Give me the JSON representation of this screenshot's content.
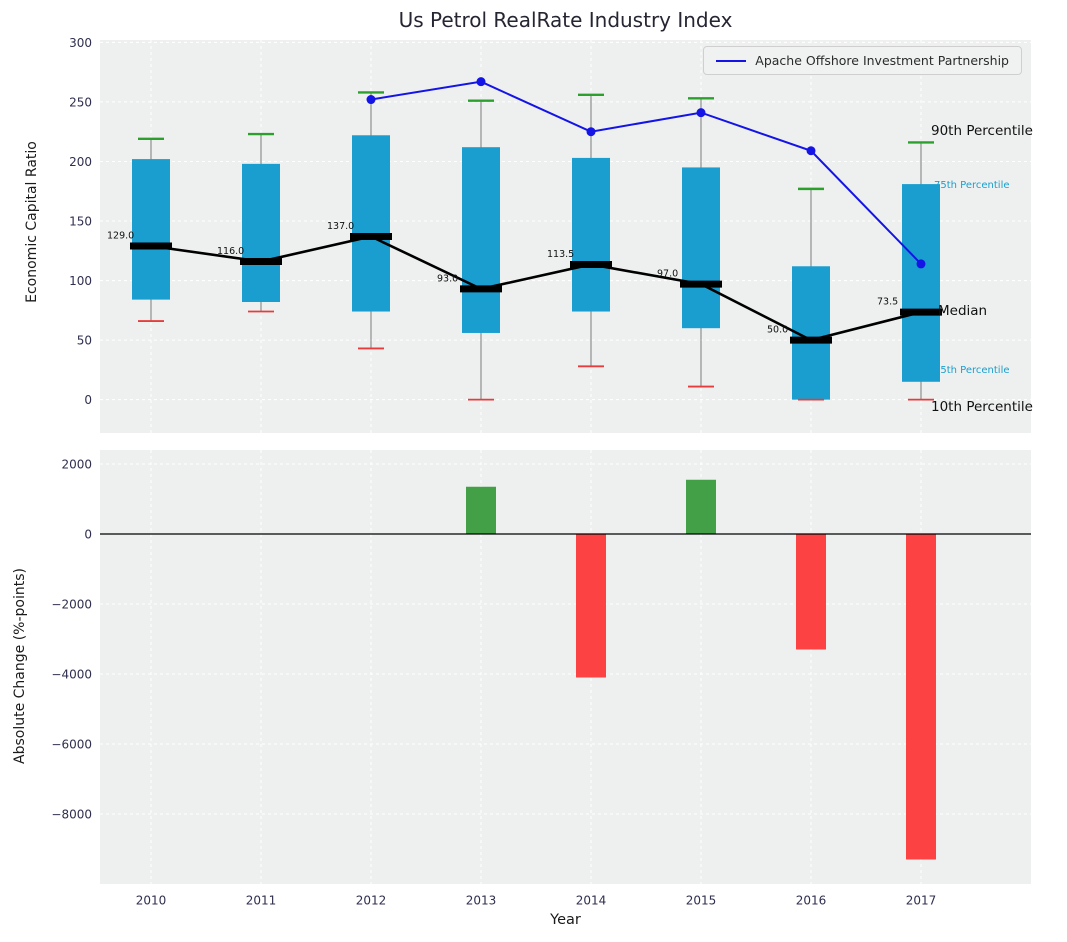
{
  "title": "Us Petrol RealRate Industry Index",
  "legend": {
    "series_label": "Apache Offshore Investment Partnership"
  },
  "axes": {
    "top_ylabel": "Economic Capital Ratio",
    "bottom_ylabel": "Absolute Change (%-points)",
    "xlabel": "Year",
    "top_yticks": [
      300,
      250,
      200,
      150,
      100,
      50,
      0
    ],
    "bottom_yticks": [
      2000,
      0,
      -2000,
      -4000,
      -6000,
      -8000
    ]
  },
  "annotations": {
    "p90": "90th Percentile",
    "p75": "75th Percentile",
    "median": "Median",
    "p25": "25th Percentile",
    "p10": "10th Percentile"
  },
  "colors": {
    "axes_bg": "#eef0ef",
    "grid": "#ffffff",
    "tick_label": "#2f2f4f",
    "box_fill": "#1a9ecf",
    "p90_cap": "#2ca02c",
    "p10_cap": "#e83c3c",
    "median": "#000000",
    "apache_line": "#1414e6",
    "bar_positive": "#43a047",
    "bar_negative": "#fc4242",
    "percentile_label_cyan": "#1a9ecf"
  },
  "chart_data": [
    {
      "type": "box",
      "title": "Us Petrol RealRate Industry Index",
      "ylabel": "Economic Capital Ratio",
      "categories": [
        "2010",
        "2011",
        "2012",
        "2013",
        "2014",
        "2015",
        "2016",
        "2017"
      ],
      "ylim": [
        -28,
        302
      ],
      "grid": true,
      "legend_position": "upper right",
      "series": {
        "p10": [
          66,
          74,
          43,
          0,
          28,
          11,
          0,
          0
        ],
        "p25": [
          84,
          82,
          74,
          56,
          74,
          60,
          0,
          15
        ],
        "median": [
          129,
          116,
          137,
          93,
          113.5,
          97,
          50,
          73.5
        ],
        "p75": [
          202,
          198,
          222,
          212,
          203,
          195,
          112,
          181
        ],
        "p90": [
          219,
          223,
          258,
          251,
          256,
          253,
          177,
          216
        ]
      },
      "median_labels": [
        "129.0",
        "116.0",
        "137.0",
        "93.0",
        "113.5",
        "97.0",
        "50.0",
        "73.5"
      ],
      "overlay_line": {
        "name": "Apache Offshore Investment Partnership",
        "x": [
          "2012",
          "2013",
          "2014",
          "2015",
          "2016",
          "2017"
        ],
        "values": [
          252,
          267,
          225,
          241,
          209,
          114
        ]
      }
    },
    {
      "type": "bar",
      "ylabel": "Absolute Change (%-points)",
      "xlabel": "Year",
      "categories": [
        "2010",
        "2011",
        "2012",
        "2013",
        "2014",
        "2015",
        "2016",
        "2017"
      ],
      "values": [
        0,
        0,
        0,
        1350,
        -4100,
        1550,
        -3300,
        -9300
      ],
      "ylim": [
        -10000,
        2400
      ],
      "grid": true
    }
  ]
}
